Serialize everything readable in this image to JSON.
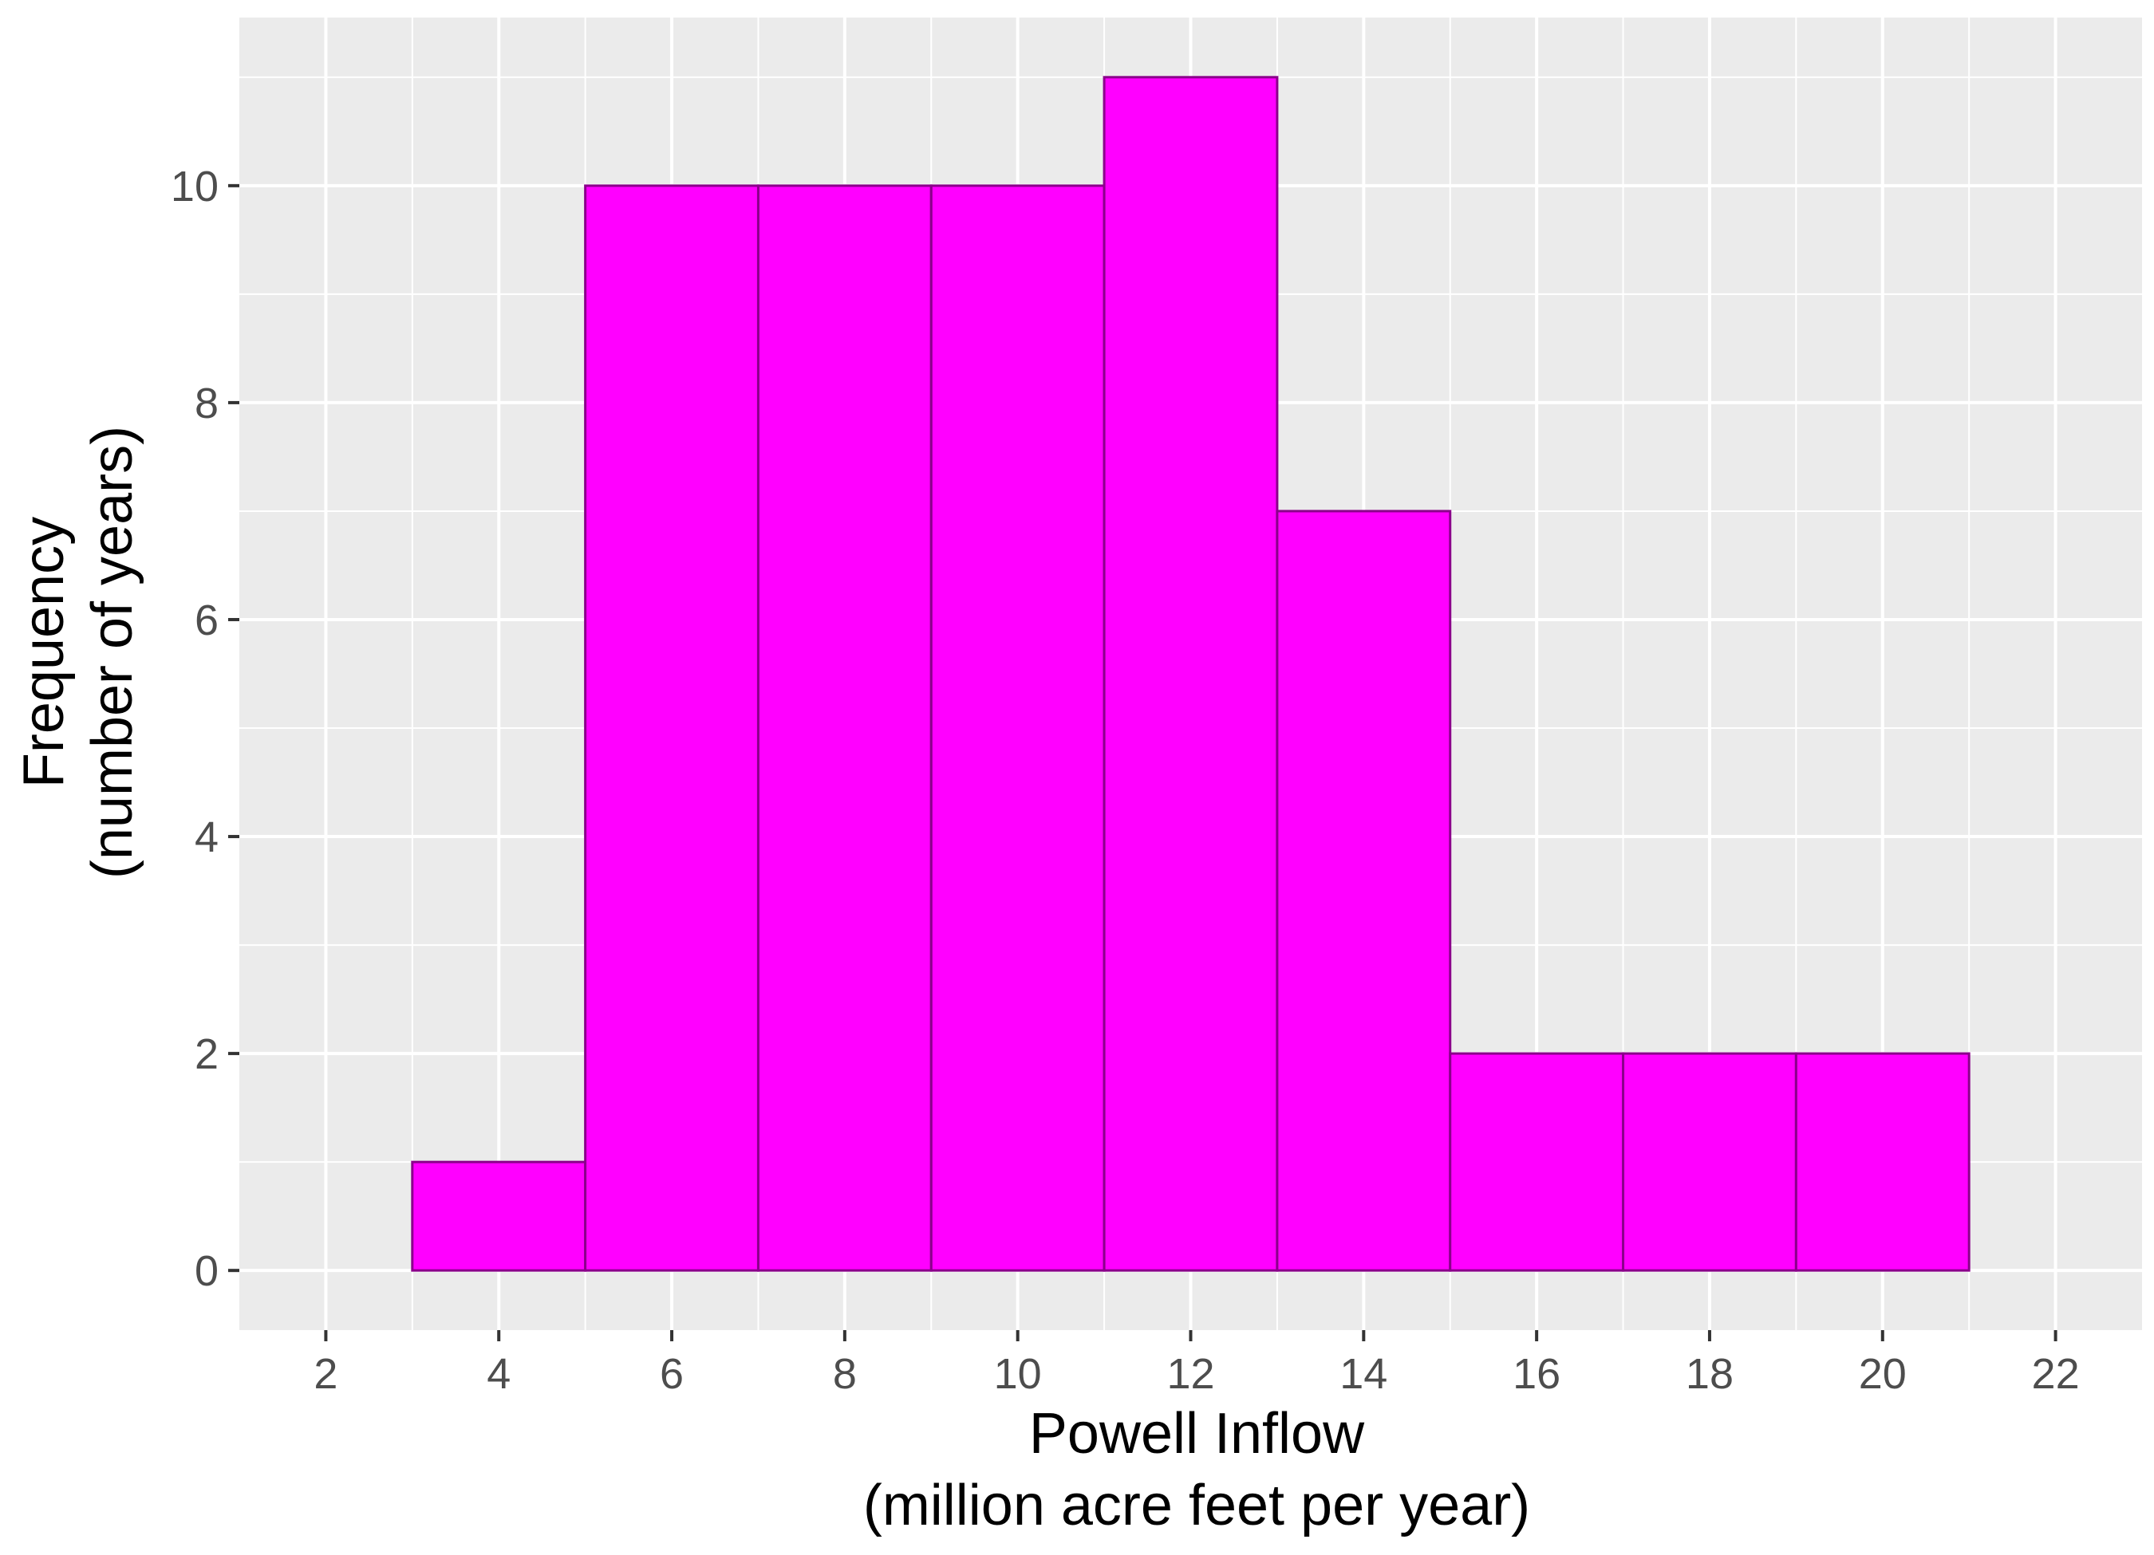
{
  "chart_data": {
    "type": "bar",
    "subtype": "histogram",
    "bins": [
      {
        "x0": 3,
        "x1": 5,
        "count": 1
      },
      {
        "x0": 5,
        "x1": 7,
        "count": 10
      },
      {
        "x0": 7,
        "x1": 9,
        "count": 10
      },
      {
        "x0": 9,
        "x1": 11,
        "count": 10
      },
      {
        "x0": 11,
        "x1": 13,
        "count": 11
      },
      {
        "x0": 13,
        "x1": 15,
        "count": 7
      },
      {
        "x0": 15,
        "x1": 17,
        "count": 2
      },
      {
        "x0": 17,
        "x1": 19,
        "count": 2
      },
      {
        "x0": 19,
        "x1": 21,
        "count": 2
      }
    ],
    "xlabel": [
      "Powell Inflow",
      "(million acre feet per year)"
    ],
    "ylabel": [
      "Frequency",
      "(number of years)"
    ],
    "xlim": [
      1,
      23
    ],
    "ylim": [
      -0.55,
      11.55
    ],
    "x_ticks": [
      2,
      4,
      6,
      8,
      10,
      12,
      14,
      16,
      18,
      20,
      22
    ],
    "y_ticks": [
      0,
      2,
      4,
      6,
      8,
      10
    ],
    "grid": true,
    "legend": "none",
    "colors": {
      "panel_background": "#ebebeb",
      "grid": "#ffffff",
      "bar_fill": "#ff00ff",
      "bar_outline": "#8b008b",
      "tick_text": "#4d4d4d",
      "title_text": "#000000"
    }
  }
}
